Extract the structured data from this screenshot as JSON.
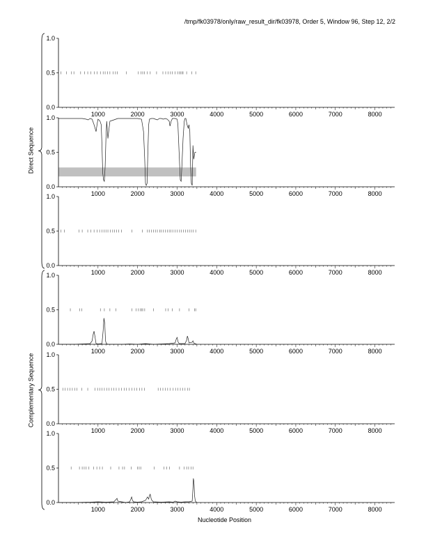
{
  "header": "/tmp/fk03978/only/raw_result_dir/fk03978, Order 5, Window 96, Step 12, 2/2",
  "xlabel": "Nucleotide Position",
  "groups": [
    "Direct Sequence",
    "Complementary Sequence"
  ],
  "chart_data": [
    {
      "type": "line",
      "panel": 1,
      "group": "Direct Sequence",
      "xlim": [
        0,
        8500
      ],
      "ylim": [
        0,
        1
      ],
      "xticks": [
        1000,
        2000,
        3000,
        4000,
        5000,
        6000,
        7000,
        8000
      ],
      "yticks": [
        "0.0",
        "0.5",
        "1.0"
      ],
      "marks_at_half": [
        60,
        200,
        330,
        390,
        560,
        660,
        740,
        820,
        910,
        980,
        1060,
        1130,
        1180,
        1240,
        1300,
        1380,
        1440,
        1490,
        1720,
        2020,
        2090,
        2130,
        2170,
        2240,
        2320,
        2480,
        2640,
        2710,
        2770,
        2830,
        2880,
        2950,
        3010,
        3050,
        3090,
        3120,
        3150,
        3240,
        3370,
        3470
      ],
      "series": [
        {
          "x": [],
          "y": []
        }
      ]
    },
    {
      "type": "line",
      "panel": 2,
      "group": "Direct Sequence",
      "xlim": [
        0,
        8500
      ],
      "ylim": [
        0,
        1
      ],
      "xticks": [
        1000,
        2000,
        3000,
        4000,
        5000,
        6000,
        7000,
        8000
      ],
      "yticks": [
        "0.0",
        "0.5",
        "1.0"
      ],
      "band": [
        0.15,
        0.28
      ],
      "band_x": [
        0,
        3480
      ],
      "marks_at_half": [],
      "series": [
        {
          "x": [
            0,
            100,
            200,
            300,
            400,
            500,
            600,
            700,
            750,
            800,
            850,
            900,
            950,
            980,
            1000,
            1020,
            1050,
            1080,
            1100,
            1120,
            1140,
            1160,
            1180,
            1200,
            1220,
            1250,
            1280,
            1300,
            1350,
            1400,
            1450,
            1500,
            1550,
            1600,
            1700,
            1800,
            1900,
            2000,
            2100,
            2150,
            2180,
            2200,
            2220,
            2240,
            2260,
            2280,
            2300,
            2350,
            2400,
            2450,
            2500,
            2550,
            2600,
            2650,
            2700,
            2750,
            2800,
            2820,
            2850,
            2880,
            2900,
            2950,
            3000,
            3020,
            3050,
            3080,
            3100,
            3120,
            3150,
            3180,
            3200,
            3220,
            3250,
            3280,
            3300,
            3320,
            3340,
            3360,
            3380,
            3400,
            3420,
            3450,
            3480
          ],
          "y": [
            0.99,
            0.99,
            0.99,
            0.99,
            0.99,
            0.99,
            0.99,
            0.98,
            0.97,
            0.99,
            0.98,
            0.9,
            0.8,
            0.92,
            0.98,
            0.97,
            0.95,
            0.9,
            0.6,
            0.2,
            0.1,
            0.08,
            0.3,
            0.7,
            0.95,
            0.7,
            0.85,
            0.95,
            0.96,
            0.97,
            0.98,
            0.99,
            0.99,
            0.99,
            0.99,
            0.99,
            0.99,
            0.99,
            0.98,
            0.8,
            0.4,
            0.05,
            0.02,
            0.05,
            0.5,
            0.9,
            0.98,
            0.99,
            0.99,
            0.98,
            0.97,
            0.99,
            0.99,
            0.98,
            0.99,
            0.98,
            0.95,
            0.88,
            0.95,
            0.99,
            0.99,
            0.99,
            0.98,
            0.9,
            0.5,
            0.1,
            0.08,
            0.3,
            0.7,
            0.95,
            0.99,
            0.99,
            0.9,
            0.85,
            0.9,
            0.8,
            0.3,
            0.05,
            0.02,
            0.6,
            0.4,
            0.5,
            0.5
          ]
        }
      ]
    },
    {
      "type": "line",
      "panel": 3,
      "group": "Direct Sequence",
      "xlim": [
        0,
        8500
      ],
      "ylim": [
        0,
        1
      ],
      "xticks": [
        1000,
        2000,
        3000,
        4000,
        5000,
        6000,
        7000,
        8000
      ],
      "yticks": [
        "0.0",
        "0.5",
        "1.0"
      ],
      "marks_at_half": [
        60,
        150,
        520,
        600,
        740,
        820,
        900,
        980,
        1040,
        1100,
        1150,
        1200,
        1250,
        1310,
        1370,
        1420,
        1470,
        1520,
        1590,
        1860,
        2120,
        2250,
        2300,
        2350,
        2400,
        2450,
        2500,
        2560,
        2600,
        2650,
        2700,
        2750,
        2800,
        2840,
        2890,
        2950,
        3000,
        3060,
        3110,
        3160,
        3210,
        3260,
        3310,
        3360,
        3410,
        3470
      ],
      "series": [
        {
          "x": [],
          "y": []
        }
      ]
    },
    {
      "type": "line",
      "panel": 4,
      "group": "Complementary Sequence",
      "xlim": [
        0,
        8500
      ],
      "ylim": [
        0,
        1
      ],
      "xticks": [
        1000,
        2000,
        3000,
        4000,
        5000,
        6000,
        7000,
        8000
      ],
      "yticks": [
        "0.0",
        "0.5",
        "1.0"
      ],
      "marks_at_half": [
        300,
        540,
        590,
        1060,
        1160,
        1300,
        1450,
        1860,
        1960,
        2020,
        2070,
        2100,
        2130,
        2180,
        2400,
        2710,
        2770,
        2880,
        3060,
        3300,
        3440,
        3470
      ],
      "series": [
        {
          "x": [
            0,
            400,
            600,
            800,
            850,
            880,
            900,
            920,
            950,
            1000,
            1100,
            1130,
            1150,
            1170,
            1190,
            1210,
            1250,
            1400,
            1600,
            1800,
            2000,
            2200,
            2400,
            2600,
            2800,
            2950,
            2980,
            3000,
            3020,
            3050,
            3200,
            3240,
            3260,
            3280,
            3300,
            3380,
            3400,
            3420,
            3450,
            3500
          ],
          "y": [
            0,
            0,
            0.005,
            0.01,
            0.05,
            0.15,
            0.19,
            0.12,
            0.01,
            0.005,
            0.01,
            0.2,
            0.38,
            0.3,
            0.05,
            0.01,
            0,
            0,
            0,
            0.005,
            0,
            0.01,
            0,
            0.005,
            0.01,
            0.02,
            0.08,
            0.1,
            0.04,
            0.01,
            0.01,
            0.06,
            0.12,
            0.08,
            0.02,
            0.03,
            0.05,
            0.02,
            0.01,
            0
          ]
        }
      ]
    },
    {
      "type": "line",
      "panel": 5,
      "group": "Complementary Sequence",
      "xlim": [
        0,
        8500
      ],
      "ylim": [
        0,
        1
      ],
      "xticks": [
        1000,
        2000,
        3000,
        4000,
        5000,
        6000,
        7000,
        8000
      ],
      "yticks": [
        "0.0",
        "0.5",
        "1.0"
      ],
      "marks_at_half": [
        110,
        170,
        230,
        290,
        350,
        410,
        470,
        590,
        740,
        920,
        990,
        1050,
        1100,
        1160,
        1220,
        1280,
        1340,
        1400,
        1460,
        1530,
        1590,
        1660,
        1720,
        1790,
        1860,
        1920,
        1980,
        2050,
        2110,
        2170,
        2520,
        2580,
        2640,
        2700,
        2760,
        2820,
        2900,
        2960,
        3020,
        3080,
        3140,
        3200,
        3260,
        3310
      ],
      "series": [
        {
          "x": [],
          "y": []
        }
      ]
    },
    {
      "type": "line",
      "panel": 6,
      "group": "Complementary Sequence",
      "xlim": [
        0,
        8500
      ],
      "ylim": [
        0,
        1
      ],
      "xticks": [
        1000,
        2000,
        3000,
        4000,
        5000,
        6000,
        7000,
        8000
      ],
      "yticks": [
        "0.0",
        "0.5",
        "1.0"
      ],
      "marks_at_half": [
        320,
        530,
        600,
        650,
        700,
        770,
        890,
        970,
        1040,
        1110,
        1320,
        1530,
        1620,
        1670,
        1840,
        2000,
        2040,
        2080,
        2420,
        2670,
        2740,
        2810,
        3060,
        3180,
        3240,
        3290,
        3350,
        3400
      ],
      "series": [
        {
          "x": [
            0,
            400,
            800,
            1000,
            1200,
            1400,
            1450,
            1480,
            1500,
            1600,
            1700,
            1800,
            1830,
            1850,
            1870,
            1900,
            2000,
            2100,
            2200,
            2250,
            2280,
            2300,
            2320,
            2350,
            2400,
            2600,
            2800,
            2900,
            2950,
            3000,
            3100,
            3200,
            3300,
            3380,
            3400,
            3410,
            3420,
            3430,
            3440,
            3460,
            3500
          ],
          "y": [
            0,
            0,
            0.005,
            0.01,
            0.005,
            0.01,
            0.04,
            0.06,
            0.02,
            0.01,
            0,
            0.01,
            0.05,
            0.08,
            0.03,
            0.01,
            0.005,
            0.01,
            0.03,
            0.08,
            0.05,
            0.1,
            0.12,
            0.04,
            0.01,
            0.005,
            0.01,
            0.005,
            0.02,
            0.01,
            0.005,
            0.01,
            0.01,
            0.02,
            0.2,
            0.35,
            0.32,
            0.25,
            0.1,
            0.02,
            0
          ]
        }
      ]
    }
  ]
}
